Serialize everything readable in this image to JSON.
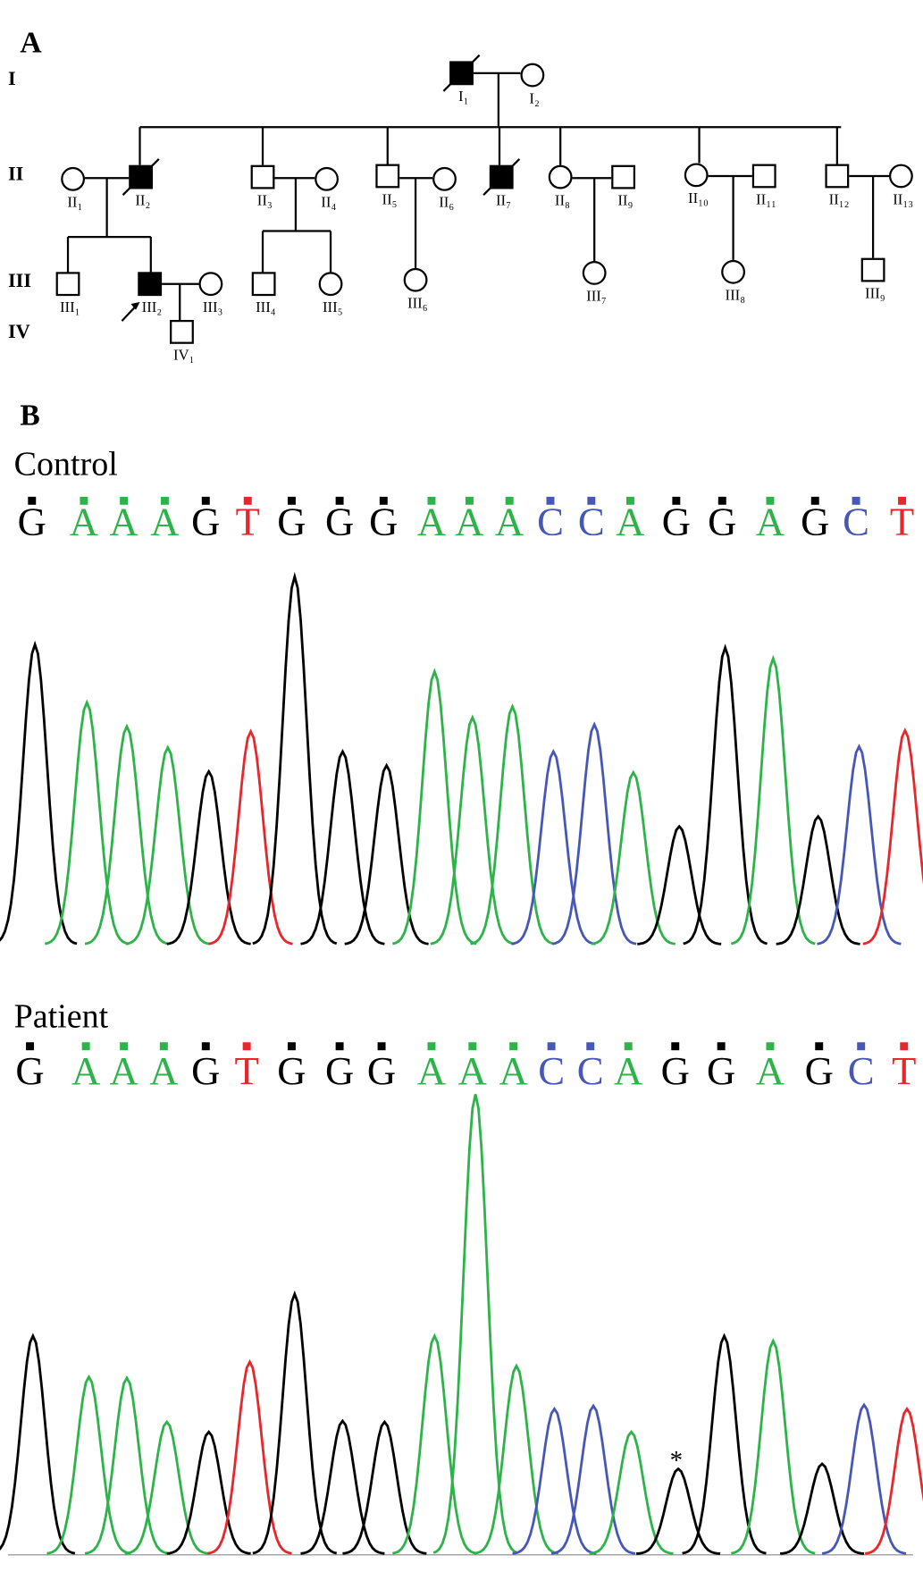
{
  "panel_a": {
    "label": "A",
    "generations": [
      "I",
      "II",
      "III",
      "IV"
    ],
    "nodes": [
      {
        "label": "I₁",
        "sex": "male",
        "affected": true,
        "deceased": true
      },
      {
        "label": "I₂",
        "sex": "female",
        "affected": false,
        "deceased": false
      },
      {
        "label": "II₁",
        "sex": "female",
        "affected": false,
        "deceased": false
      },
      {
        "label": "II₂",
        "sex": "male",
        "affected": true,
        "deceased": true
      },
      {
        "label": "II₃",
        "sex": "male",
        "affected": false,
        "deceased": false
      },
      {
        "label": "II₄",
        "sex": "female",
        "affected": false,
        "deceased": false
      },
      {
        "label": "II₅",
        "sex": "male",
        "affected": false,
        "deceased": false
      },
      {
        "label": "II₆",
        "sex": "female",
        "affected": false,
        "deceased": false
      },
      {
        "label": "II₇",
        "sex": "male",
        "affected": true,
        "deceased": true
      },
      {
        "label": "II₈",
        "sex": "female",
        "affected": false,
        "deceased": false
      },
      {
        "label": "II₉",
        "sex": "male",
        "affected": false,
        "deceased": false
      },
      {
        "label": "II₁₀",
        "sex": "female",
        "affected": false,
        "deceased": false
      },
      {
        "label": "II₁₁",
        "sex": "male",
        "affected": false,
        "deceased": false
      },
      {
        "label": "II₁₂",
        "sex": "male",
        "affected": false,
        "deceased": false
      },
      {
        "label": "II₁₃",
        "sex": "female",
        "affected": false,
        "deceased": false
      },
      {
        "label": "III₁",
        "sex": "male",
        "affected": false,
        "deceased": false
      },
      {
        "label": "III₂",
        "sex": "male",
        "affected": true,
        "deceased": false,
        "proband": true
      },
      {
        "label": "III₃",
        "sex": "female",
        "affected": false,
        "deceased": false
      },
      {
        "label": "III₄",
        "sex": "male",
        "affected": false,
        "deceased": false
      },
      {
        "label": "III₅",
        "sex": "female",
        "affected": false,
        "deceased": false
      },
      {
        "label": "III₆",
        "sex": "female",
        "affected": false,
        "deceased": false
      },
      {
        "label": "III₇",
        "sex": "female",
        "affected": false,
        "deceased": false
      },
      {
        "label": "III₈",
        "sex": "female",
        "affected": false,
        "deceased": false
      },
      {
        "label": "III₉",
        "sex": "male",
        "affected": false,
        "deceased": false
      },
      {
        "label": "IV₁",
        "sex": "male",
        "affected": false,
        "deceased": false
      }
    ]
  },
  "panel_b": {
    "label": "B",
    "base_colors": {
      "G": "#000000",
      "A": "#2db34a",
      "T": "#e8262b",
      "C": "#4657b8"
    },
    "control": {
      "title": "Control",
      "bases": [
        "G",
        "A",
        "A",
        "A",
        "G",
        "T",
        "G",
        "G",
        "G",
        "A",
        "A",
        "A",
        "C",
        "C",
        "A",
        "G",
        "G",
        "A",
        "G",
        "C",
        "T"
      ],
      "peak_heights": [
        300,
        242,
        218,
        197,
        173,
        213,
        368,
        193,
        179,
        273,
        227,
        238,
        193,
        220,
        172,
        118,
        297,
        286,
        128,
        198,
        214
      ]
    },
    "patient": {
      "title": "Patient",
      "annotation": "*",
      "bases": [
        "G",
        "A",
        "A",
        "A",
        "G",
        "T",
        "G",
        "G",
        "G",
        "A",
        "A",
        "A",
        "C",
        "C",
        "A",
        "G",
        "G",
        "A",
        "G",
        "C",
        "T"
      ],
      "peak_heights": [
        218,
        177,
        176,
        132,
        122,
        192,
        260,
        133,
        132,
        218,
        460,
        188,
        145,
        148,
        122,
        85,
        218,
        213,
        90,
        149,
        145
      ]
    }
  }
}
